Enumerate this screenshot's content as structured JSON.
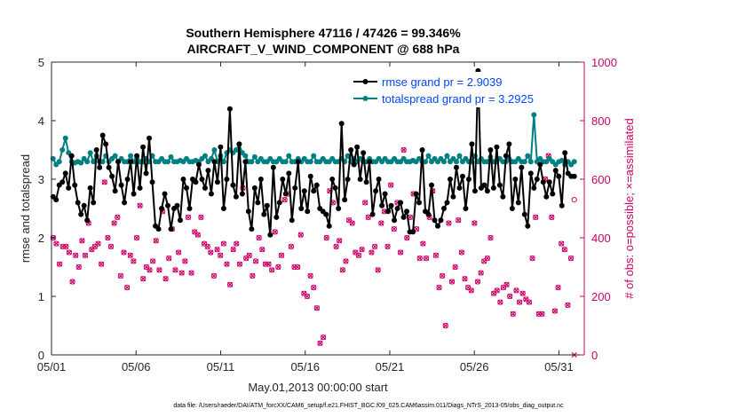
{
  "chart_data": {
    "type": "line",
    "title": "Southern Hemisphere 47116 / 47426 = 99.346%",
    "subtitle": "AIRCRAFT_V_WIND_COMPONENT @ 688 hPa",
    "xlabel": "May.01,2013 00:00:00 start",
    "ylabel": "rmse and totalspread",
    "y2label": "# of obs: o=possible; ×=assimilated",
    "xlim": [
      0,
      31.5
    ],
    "ylim": [
      0,
      5
    ],
    "y2lim": [
      0,
      1000
    ],
    "x_ticks": [
      0,
      5,
      10,
      15,
      20,
      25,
      30
    ],
    "x_tick_labels": [
      "05/01",
      "05/06",
      "05/11",
      "05/16",
      "05/21",
      "05/26",
      "05/31"
    ],
    "y_ticks": [
      "0",
      "1",
      "2",
      "3",
      "4",
      "5"
    ],
    "y2_ticks": [
      "0",
      "200",
      "400",
      "600",
      "800",
      "1000"
    ],
    "footnote": "data file: /Users/raeder/DAI/ATM_forcXX/CAM6_setup/f.e21.FHIST_BGC.f09_025.CAM6assim.011/Diags_NTrS_2013-05/obs_diag_output.nc",
    "series": [
      {
        "name": "rmse",
        "legend": "rmse grand pr = 2.9039",
        "color": "#000000",
        "values": [
          2.7,
          2.65,
          2.9,
          2.95,
          3.1,
          2.85,
          3.4,
          2.9,
          2.6,
          2.4,
          2.55,
          2.3,
          2.85,
          2.6,
          3.5,
          3.2,
          3.75,
          3.6,
          3.2,
          3.05,
          2.8,
          3.3,
          2.9,
          2.6,
          3.0,
          3.3,
          2.75,
          3.4,
          2.85,
          3.55,
          3.1,
          3.7,
          2.95,
          2.2,
          2.15,
          2.5,
          2.75,
          2.55,
          2.15,
          2.5,
          2.55,
          2.3,
          3.0,
          2.85,
          2.5,
          3.0,
          2.95,
          3.25,
          3.0,
          2.85,
          3.15,
          2.75,
          3.3,
          2.95,
          3.55,
          2.5,
          3.0,
          4.2,
          2.9,
          2.7,
          3.6,
          2.75,
          3.3,
          2.45,
          2.15,
          2.85,
          2.6,
          3.0,
          2.4,
          2.55,
          2.05,
          3.2,
          2.35,
          2.6,
          3.0,
          2.75,
          3.1,
          2.3,
          2.85,
          3.3,
          2.5,
          2.8,
          2.45,
          3.05,
          2.8,
          2.9,
          2.5,
          2.45,
          2.4,
          2.2,
          3.0,
          2.85,
          2.5,
          3.95,
          2.65,
          3.0,
          3.5,
          3.25,
          3.55,
          3.0,
          3.45,
          2.95,
          3.3,
          2.4,
          2.8,
          3.0,
          2.55,
          2.75,
          2.45,
          2.55,
          2.3,
          2.5,
          2.6,
          2.35,
          2.45,
          2.1,
          2.1,
          2.75,
          2.6,
          3.5,
          2.45,
          2.4,
          2.9,
          2.3,
          2.2,
          2.3,
          2.5,
          2.6,
          3.0,
          2.7,
          3.2,
          2.85,
          3.05,
          2.5,
          3.0,
          3.6,
          2.8,
          4.85,
          2.85,
          2.9,
          2.8,
          3.5,
          2.85,
          3.55,
          2.9,
          2.7,
          3.4,
          3.6,
          2.5,
          3.0,
          2.6,
          3.2,
          2.4,
          2.2,
          3.1,
          2.85,
          3.0,
          3.25,
          2.95,
          2.7,
          2.95,
          2.75,
          3.15,
          3.05,
          2.55,
          3.45,
          3.1,
          3.05,
          3.05
        ]
      },
      {
        "name": "totalspread",
        "legend": "totalspread grand pr = 3.2925",
        "color": "#008080",
        "values": [
          3.35,
          3.25,
          3.3,
          3.5,
          3.7,
          3.45,
          3.3,
          3.28,
          3.3,
          3.28,
          3.35,
          3.3,
          3.45,
          3.3,
          3.4,
          3.3,
          3.3,
          3.4,
          3.3,
          3.35,
          3.4,
          3.3,
          3.35,
          3.3,
          3.3,
          3.4,
          3.3,
          3.35,
          3.3,
          3.3,
          3.35,
          3.3,
          3.4,
          3.3,
          3.3,
          3.35,
          3.3,
          3.3,
          3.38,
          3.3,
          3.3,
          3.32,
          3.3,
          3.35,
          3.3,
          3.3,
          3.32,
          3.3,
          3.35,
          3.4,
          3.3,
          3.35,
          3.5,
          3.3,
          3.4,
          3.3,
          3.45,
          3.5,
          3.45,
          3.5,
          3.6,
          3.45,
          3.4,
          3.3,
          3.3,
          3.38,
          3.3,
          3.35,
          3.3,
          3.3,
          3.35,
          3.3,
          3.3,
          3.35,
          3.3,
          3.3,
          3.4,
          3.3,
          3.3,
          3.35,
          3.3,
          3.35,
          3.3,
          3.3,
          3.4,
          3.3,
          3.3,
          3.35,
          3.3,
          3.3,
          3.35,
          3.3,
          3.3,
          3.35,
          3.3,
          3.4,
          3.3,
          3.35,
          3.3,
          3.35,
          3.3,
          3.3,
          3.35,
          3.3,
          3.3,
          3.35,
          3.3,
          3.35,
          3.3,
          3.3,
          3.35,
          3.3,
          3.3,
          3.35,
          3.3,
          3.3,
          3.32,
          3.3,
          3.35,
          3.3,
          3.3,
          3.4,
          3.3,
          3.35,
          3.3,
          3.35,
          3.3,
          3.4,
          3.3,
          3.35,
          3.3,
          3.4,
          3.3,
          3.35,
          3.3,
          3.3,
          3.4,
          3.3,
          3.35,
          3.3,
          3.3,
          3.38,
          3.3,
          3.3,
          3.35,
          3.3,
          3.3,
          3.35,
          3.3,
          3.3,
          3.35,
          3.3,
          3.3,
          3.4,
          3.3,
          4.1,
          3.3,
          3.35,
          3.3,
          3.3,
          3.35,
          3.3,
          3.25,
          3.3,
          3.32,
          3.25,
          3.3,
          3.25,
          3.3
        ]
      },
      {
        "name": "obs possible",
        "color": "#cc0066",
        "marker": "o",
        "values": [
          400,
          380,
          310,
          370,
          370,
          350,
          250,
          340,
          300,
          390,
          340,
          450,
          360,
          370,
          380,
          310,
          590,
          400,
          370,
          450,
          470,
          270,
          350,
          230,
          340,
          320,
          400,
          510,
          260,
          300,
          290,
          320,
          390,
          290,
          490,
          260,
          330,
          430,
          290,
          350,
          280,
          320,
          470,
          280,
          420,
          410,
          470,
          380,
          370,
          350,
          270,
          360,
          340,
          380,
          310,
          240,
          360,
          380,
          310,
          570,
          330,
          340,
          270,
          320,
          400,
          360,
          310,
          310,
          290,
          420,
          300,
          340,
          530,
          550,
          370,
          300,
          300,
          410,
          210,
          200,
          270,
          230,
          160,
          40,
          60,
          400,
          560,
          520,
          370,
          390,
          290,
          320,
          460,
          450,
          350,
          340,
          360,
          520,
          470,
          350,
          370,
          290,
          450,
          490,
          370,
          580,
          430,
          520,
          350,
          700,
          400,
          470,
          550,
          430,
          330,
          380,
          330,
          470,
          560,
          340,
          230,
          270,
          100,
          450,
          250,
          300,
          460,
          350,
          260,
          230,
          220,
          450,
          250,
          280,
          320,
          330,
          400,
          210,
          220,
          180,
          230,
          240,
          200,
          140,
          220,
          180,
          210,
          190,
          180,
          330,
          470,
          140,
          140,
          600,
          680,
          470,
          150,
          230,
          380,
          360,
          170,
          330,
          530
        ]
      },
      {
        "name": "obs assimilated",
        "color": "#cc0066",
        "marker": "x",
        "values": [
          400,
          380,
          310,
          370,
          370,
          350,
          250,
          340,
          300,
          390,
          340,
          450,
          360,
          370,
          380,
          310,
          590,
          400,
          370,
          450,
          470,
          270,
          350,
          230,
          340,
          320,
          400,
          510,
          260,
          300,
          290,
          320,
          390,
          290,
          490,
          260,
          330,
          430,
          290,
          350,
          280,
          320,
          470,
          280,
          420,
          410,
          470,
          380,
          370,
          350,
          270,
          360,
          340,
          380,
          310,
          240,
          360,
          380,
          310,
          570,
          330,
          340,
          270,
          320,
          400,
          360,
          310,
          310,
          290,
          420,
          300,
          340,
          530,
          550,
          370,
          300,
          300,
          410,
          210,
          200,
          270,
          230,
          160,
          40,
          60,
          400,
          560,
          520,
          370,
          390,
          290,
          320,
          460,
          450,
          350,
          340,
          360,
          520,
          470,
          350,
          370,
          290,
          450,
          490,
          370,
          580,
          430,
          520,
          350,
          700,
          400,
          470,
          550,
          430,
          330,
          380,
          330,
          470,
          560,
          340,
          230,
          270,
          100,
          450,
          250,
          300,
          460,
          350,
          260,
          230,
          220,
          450,
          250,
          280,
          320,
          330,
          400,
          210,
          220,
          180,
          230,
          240,
          200,
          140,
          220,
          180,
          210,
          190,
          180,
          330,
          470,
          140,
          140,
          600,
          680,
          470,
          150,
          230,
          380,
          360,
          170,
          330,
          0
        ]
      }
    ]
  }
}
